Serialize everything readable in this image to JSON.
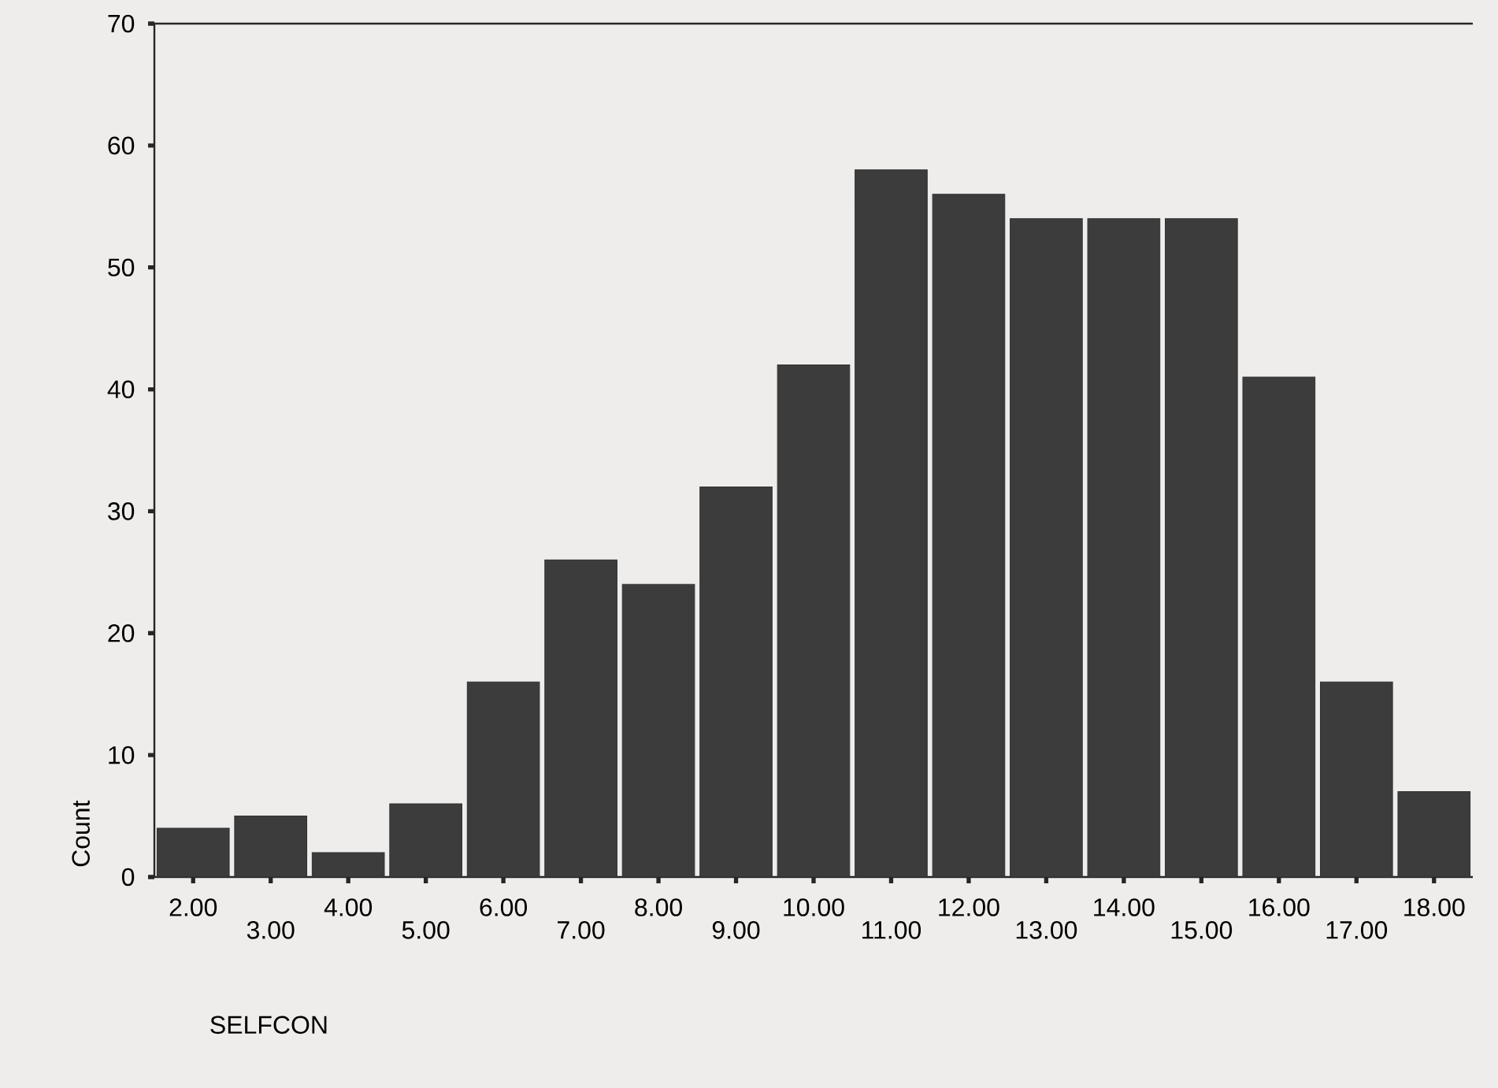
{
  "chart_data": {
    "type": "bar",
    "xlabel": "SELFCON",
    "ylabel": "Count",
    "categories": [
      "2.00",
      "3.00",
      "4.00",
      "5.00",
      "6.00",
      "7.00",
      "8.00",
      "9.00",
      "10.00",
      "11.00",
      "12.00",
      "13.00",
      "14.00",
      "15.00",
      "16.00",
      "17.00",
      "18.00"
    ],
    "values": [
      4,
      5,
      2,
      6,
      16,
      26,
      24,
      32,
      42,
      58,
      56,
      54,
      54,
      54,
      41,
      16,
      7
    ],
    "color": "#3c3c3c",
    "ylim": [
      0,
      70
    ],
    "yticks": [
      0,
      10,
      20,
      30,
      40,
      50,
      60,
      70
    ],
    "grid": false
  }
}
